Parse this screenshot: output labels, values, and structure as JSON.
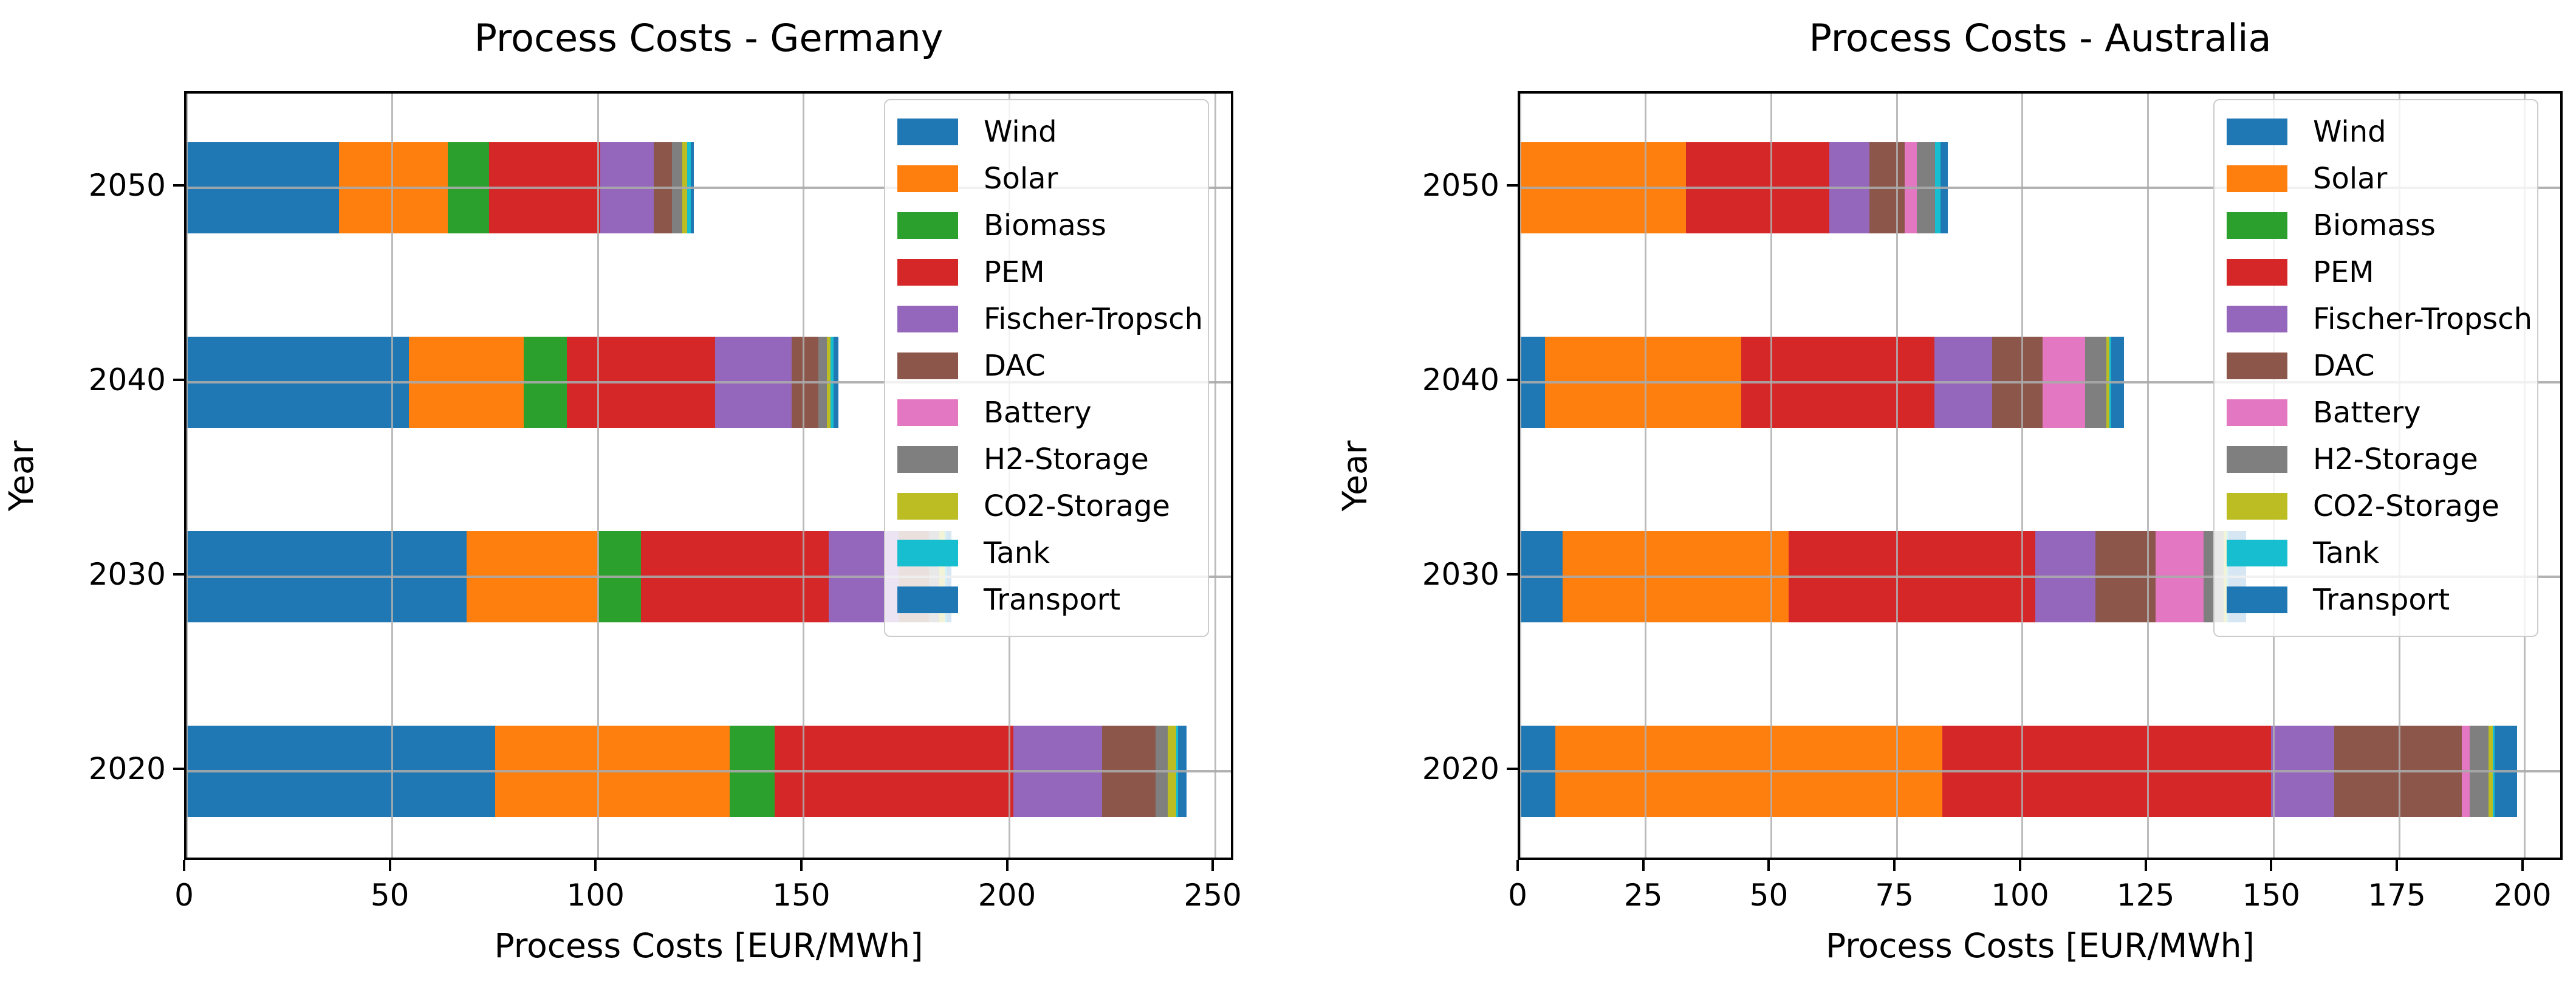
{
  "chart_data": [
    {
      "type": "bar",
      "orientation": "horizontal",
      "stacked": true,
      "title": "Process Costs - Germany",
      "xlabel": "Process Costs [EUR/MWh]",
      "ylabel": "Year",
      "categories": [
        "2020",
        "2030",
        "2040",
        "2050"
      ],
      "xlim": [
        0,
        255
      ],
      "xticks": [
        0,
        50,
        100,
        150,
        200,
        250
      ],
      "grid": true,
      "legend_position": "upper right",
      "series": [
        {
          "name": "Wind",
          "color": "#1f77b4",
          "values": [
            75,
            68,
            54,
            37
          ]
        },
        {
          "name": "Solar",
          "color": "#ff7f0e",
          "values": [
            57,
            32,
            28,
            26.5
          ]
        },
        {
          "name": "Biomass",
          "color": "#2ca02c",
          "values": [
            11,
            10.5,
            10.5,
            10
          ]
        },
        {
          "name": "PEM",
          "color": "#d62728",
          "values": [
            58,
            45.5,
            36,
            27
          ]
        },
        {
          "name": "Fischer-Tropsch",
          "color": "#9467bd",
          "values": [
            21.5,
            17,
            18.5,
            13
          ]
        },
        {
          "name": "DAC",
          "color": "#8c564b",
          "values": [
            13,
            7.5,
            6.5,
            4.5
          ]
        },
        {
          "name": "Battery",
          "color": "#e377c2",
          "values": [
            0,
            0,
            0,
            0
          ]
        },
        {
          "name": "H2-Storage",
          "color": "#7f7f7f",
          "values": [
            3,
            2.5,
            2.2,
            2.5
          ]
        },
        {
          "name": "CO2-Storage",
          "color": "#bcbd22",
          "values": [
            2,
            1.3,
            0.8,
            1.2
          ]
        },
        {
          "name": "Tank",
          "color": "#17becf",
          "values": [
            0.5,
            0.4,
            0.7,
            0.8
          ]
        },
        {
          "name": "Transport",
          "color": "#1f77b4",
          "values": [
            2,
            1.2,
            1.3,
            0.8
          ]
        }
      ]
    },
    {
      "type": "bar",
      "orientation": "horizontal",
      "stacked": true,
      "title": "Process Costs - Australia",
      "xlabel": "Process Costs [EUR/MWh]",
      "ylabel": "Year",
      "categories": [
        "2020",
        "2030",
        "2040",
        "2050"
      ],
      "xlim": [
        0,
        208
      ],
      "xticks": [
        0,
        25,
        50,
        75,
        100,
        125,
        150,
        175,
        200
      ],
      "grid": true,
      "legend_position": "upper right",
      "series": [
        {
          "name": "Wind",
          "color": "#1f77b4",
          "values": [
            7,
            8.5,
            5,
            0
          ]
        },
        {
          "name": "Solar",
          "color": "#ff7f0e",
          "values": [
            77,
            45,
            39,
            33
          ]
        },
        {
          "name": "Biomass",
          "color": "#2ca02c",
          "values": [
            0,
            0,
            0,
            0
          ]
        },
        {
          "name": "PEM",
          "color": "#d62728",
          "values": [
            65.5,
            49,
            38.5,
            28.5
          ]
        },
        {
          "name": "Fischer-Tropsch",
          "color": "#9467bd",
          "values": [
            12.5,
            12,
            11.5,
            8
          ]
        },
        {
          "name": "DAC",
          "color": "#8c564b",
          "values": [
            25.5,
            12,
            10,
            7
          ]
        },
        {
          "name": "Battery",
          "color": "#e377c2",
          "values": [
            1.5,
            9.5,
            8.5,
            2.5
          ]
        },
        {
          "name": "H2-Storage",
          "color": "#7f7f7f",
          "values": [
            3.8,
            4,
            4.2,
            3.6
          ]
        },
        {
          "name": "CO2-Storage",
          "color": "#bcbd22",
          "values": [
            0.8,
            0.6,
            0.6,
            0
          ]
        },
        {
          "name": "Tank",
          "color": "#17becf",
          "values": [
            0.4,
            0.4,
            0.4,
            1.1
          ]
        },
        {
          "name": "Transport",
          "color": "#1f77b4",
          "values": [
            4.5,
            3.5,
            2.5,
            1.5
          ]
        }
      ]
    }
  ],
  "style": {
    "grid_color": "#b0b0b0",
    "spine_color": "#000000",
    "background": "#ffffff"
  }
}
